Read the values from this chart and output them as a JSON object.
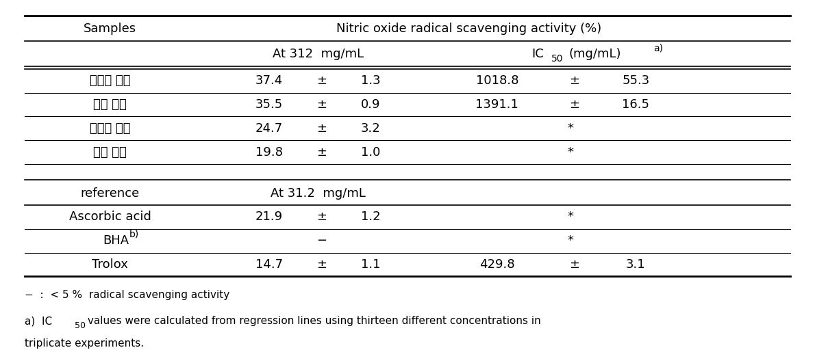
{
  "title": "Nitric oxide radical scavenging activity (%)",
  "samples_data": [
    [
      "미성숙 과피",
      "37.4",
      "±",
      "1.3",
      "1018.8",
      "±",
      "55.3"
    ],
    [
      "성숙 과피",
      "35.5",
      "±",
      "0.9",
      "1391.1",
      "±",
      "16.5"
    ],
    [
      "미성숙 과육",
      "24.7",
      "±",
      "3.2",
      "",
      "*",
      ""
    ],
    [
      "성숙 과육",
      "19.8",
      "±",
      "1.0",
      "",
      "*",
      ""
    ]
  ],
  "ref_data": [
    [
      "Ascorbic acid",
      "21.9",
      "±",
      "1.2",
      "",
      "*",
      ""
    ],
    [
      "BHA",
      "",
      "−",
      "",
      "",
      "*",
      ""
    ],
    [
      "Trolox",
      "14.7",
      "±",
      "1.1",
      "429.8",
      "±",
      "3.1"
    ]
  ],
  "background_color": "#ffffff",
  "text_color": "#000000",
  "font_size_main": 13,
  "font_size_sub": 10,
  "font_size_footnote": 11
}
